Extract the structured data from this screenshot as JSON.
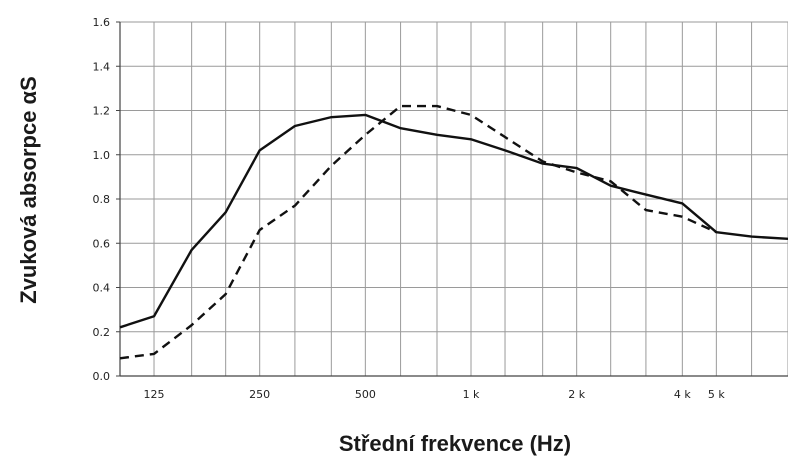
{
  "chart_data": {
    "type": "line",
    "xlabel": "Střední frekvence (Hz)",
    "ylabel": "Zvuková absorpce αS",
    "x_scale": "log",
    "x": [
      100,
      125,
      160,
      200,
      250,
      315,
      400,
      500,
      630,
      800,
      1000,
      1250,
      1600,
      2000,
      2500,
      3150,
      4000,
      5000,
      6300,
      8000
    ],
    "xlim": [
      100,
      8000
    ],
    "ylim": [
      0,
      1.6
    ],
    "yticks": [
      "0.0",
      "0.2",
      "0.4",
      "0.6",
      "0.8",
      "1.0",
      "1.2",
      "1.4",
      "1.6"
    ],
    "ytick_values": [
      0,
      0.2,
      0.4,
      0.6,
      0.8,
      1.0,
      1.2,
      1.4,
      1.6
    ],
    "xticks": [
      {
        "value": 125,
        "label": "125"
      },
      {
        "value": 250,
        "label": "250"
      },
      {
        "value": 500,
        "label": "500"
      },
      {
        "value": 1000,
        "label": "1 k"
      },
      {
        "value": 2000,
        "label": "2 k"
      },
      {
        "value": 4000,
        "label": "4 k"
      },
      {
        "value": 5000,
        "label": "5 k"
      }
    ],
    "grid": true,
    "series": [
      {
        "style": "solid",
        "color": "#111111",
        "values": [
          0.22,
          0.27,
          0.57,
          0.74,
          1.02,
          1.13,
          1.17,
          1.18,
          1.12,
          1.09,
          1.07,
          1.02,
          0.96,
          0.94,
          0.86,
          0.82,
          0.78,
          0.65,
          0.63,
          0.62
        ]
      },
      {
        "style": "dashed",
        "color": "#111111",
        "values": [
          0.08,
          0.1,
          0.23,
          0.37,
          0.66,
          0.77,
          0.95,
          1.09,
          1.22,
          1.22,
          1.18,
          1.08,
          0.97,
          0.92,
          0.88,
          0.75,
          0.72,
          0.65,
          null,
          null
        ]
      }
    ]
  }
}
